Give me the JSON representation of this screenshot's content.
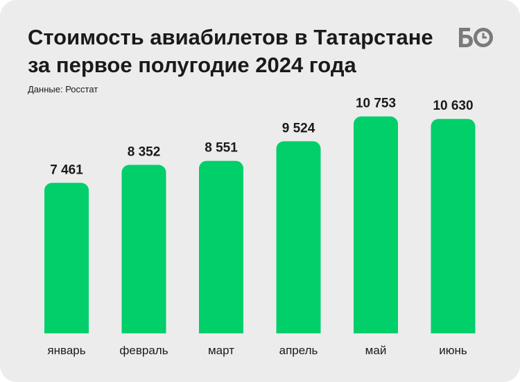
{
  "header": {
    "title_line1": "Стоимость авиабилетов в Татарстане",
    "title_line2": "за первое полугодие 2024 года",
    "source": "Данные: Росстат",
    "logo_icon": "bo-logo-icon"
  },
  "colors": {
    "bar": "#00cf6a",
    "background": "#ececec",
    "text": "#1a1a1a",
    "logo": "#7a7a7a"
  },
  "chart_data": {
    "type": "bar",
    "categories": [
      "январь",
      "февраль",
      "март",
      "апрель",
      "май",
      "июнь"
    ],
    "values": [
      7461,
      8352,
      8551,
      9524,
      10753,
      10630
    ],
    "value_labels": [
      "7 461",
      "8 352",
      "8 551",
      "9 524",
      "10 753",
      "10 630"
    ],
    "title": "Стоимость авиабилетов в Татарстане за первое полугодие 2024 года",
    "xlabel": "",
    "ylabel": "",
    "grid": false,
    "legend": "none"
  }
}
